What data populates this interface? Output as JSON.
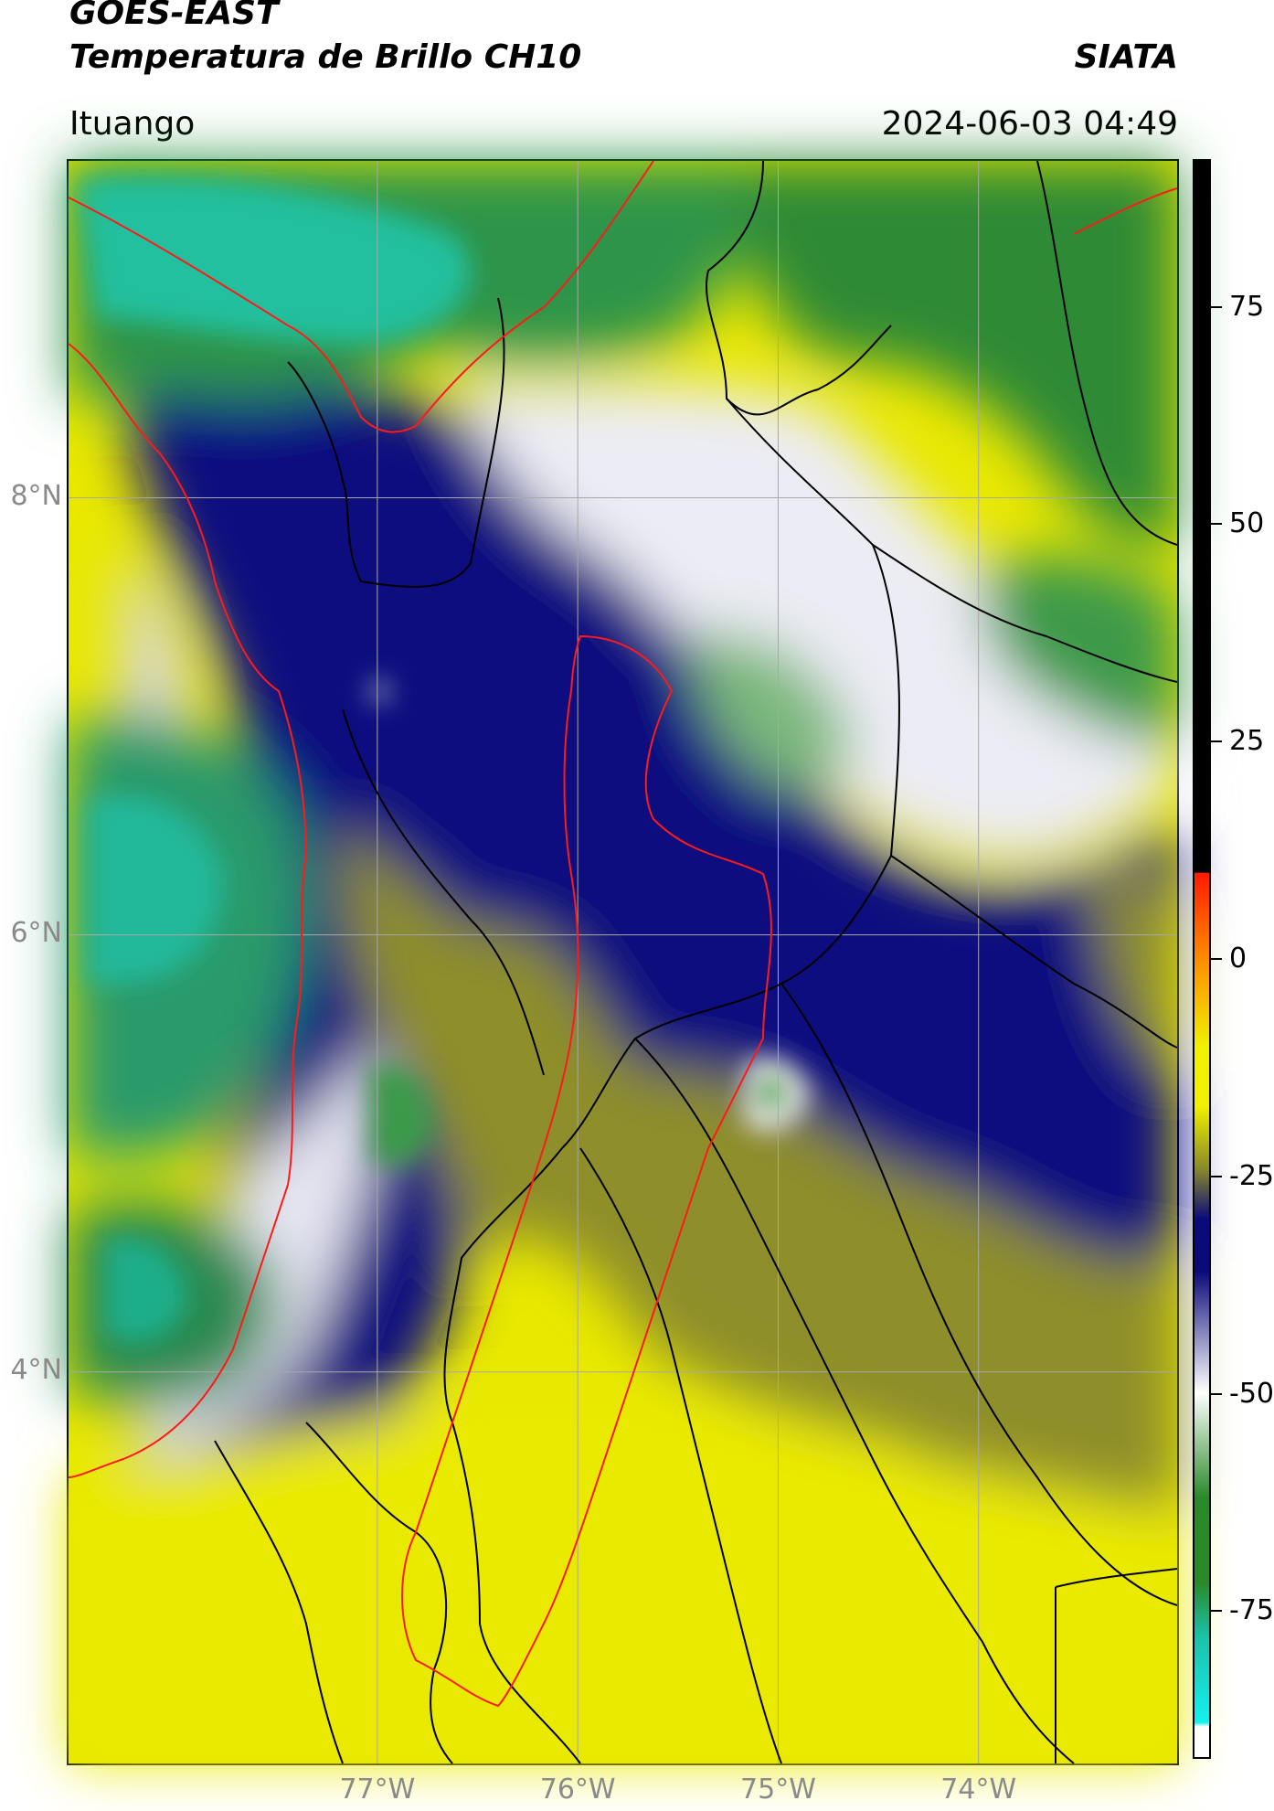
{
  "header": {
    "title_line1": "GOES-EAST",
    "title_line2": "Temperatura de Brillo CH10",
    "brand": "SIATA",
    "location": "Ituango",
    "timestamp": "2024-06-03 04:49"
  },
  "map": {
    "lat_labels": [
      {
        "label": "8°N",
        "lat": 8
      },
      {
        "label": "6°N",
        "lat": 6
      },
      {
        "label": "4°N",
        "lat": 4
      }
    ],
    "lon_labels": [
      {
        "label": "77°W",
        "lon": -77
      },
      {
        "label": "76°W",
        "lon": -76
      },
      {
        "label": "75°W",
        "lon": -75
      },
      {
        "label": "74°W",
        "lon": -74
      }
    ],
    "extent": {
      "lon_min": -78.55,
      "lon_max": -73.0,
      "lat_min": 2.2,
      "lat_max": 9.55
    }
  },
  "colorbar": {
    "range": [
      -92,
      92
    ],
    "ticks": [
      "75",
      "50",
      "25",
      "0",
      "-25",
      "-50",
      "-75"
    ],
    "tick_values": [
      75,
      50,
      25,
      0,
      -25,
      -50,
      -75
    ],
    "colors": {
      "above_10": "#000000",
      "zero": "#ff8c00",
      "red": "#ff1a00",
      "yellow": "#f0f000",
      "olive": "#8c8c28",
      "navy": "#0a0a7a",
      "white": "#ffffff",
      "green": "#2a8a2a",
      "teal": "#1cc0a8",
      "cyan": "#14f0f0"
    }
  }
}
